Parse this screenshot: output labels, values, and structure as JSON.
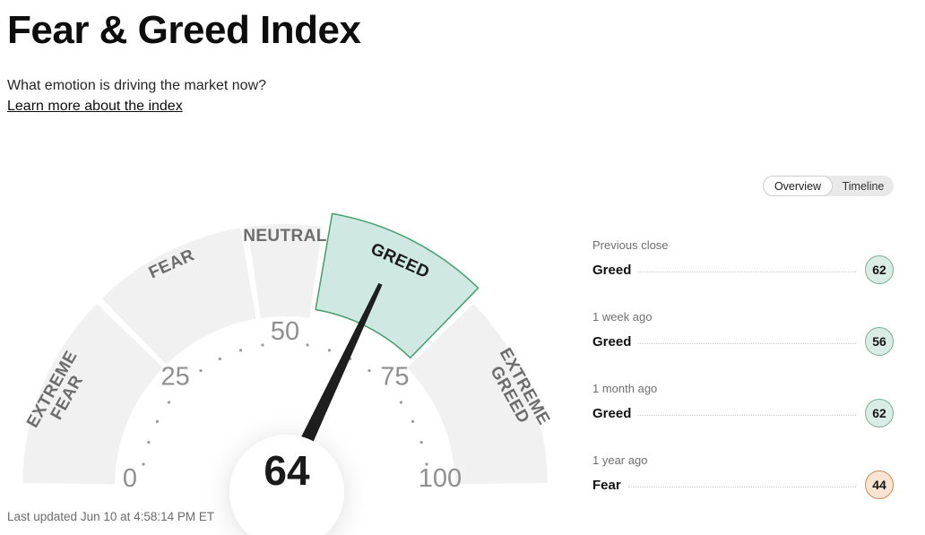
{
  "header": {
    "title": "Fear & Greed Index",
    "subtitle": "What emotion is driving the market now?",
    "link": "Learn more about the index"
  },
  "view_toggle": {
    "options": [
      {
        "label": "Overview",
        "selected": true
      },
      {
        "label": "Timeline",
        "selected": false
      }
    ]
  },
  "chart_data": {
    "type": "gauge",
    "title": "Fear & Greed Index",
    "score": 64,
    "current_rating": "Greed",
    "min": 0,
    "max": 100,
    "axis_ticks": [
      0,
      25,
      50,
      75,
      100
    ],
    "dot_step": 5,
    "segments": [
      {
        "label": "Extreme Fear",
        "display_lines": [
          "EXTREME",
          "FEAR"
        ],
        "from": 0,
        "to": 25,
        "selected": false
      },
      {
        "label": "Fear",
        "display_lines": [
          "FEAR"
        ],
        "from": 25,
        "to": 45,
        "selected": false
      },
      {
        "label": "Neutral",
        "display_lines": [
          "NEUTRAL"
        ],
        "from": 45,
        "to": 55,
        "selected": false
      },
      {
        "label": "Greed",
        "display_lines": [
          "GREED"
        ],
        "from": 55,
        "to": 75,
        "selected": true
      },
      {
        "label": "Extreme Greed",
        "display_lines": [
          "EXTREME",
          "GREED"
        ],
        "from": 75,
        "to": 100,
        "selected": false
      }
    ]
  },
  "history": [
    {
      "period": "Previous close",
      "rating": "Greed",
      "value": "62",
      "color": "teal"
    },
    {
      "period": "1 week ago",
      "rating": "Greed",
      "value": "56",
      "color": "teal"
    },
    {
      "period": "1 month ago",
      "rating": "Greed",
      "value": "62",
      "color": "teal"
    },
    {
      "period": "1 year ago",
      "rating": "Fear",
      "value": "44",
      "color": "orange"
    }
  ],
  "colors": {
    "segment_fill": "#f1f1f1",
    "selected_fill": "#cfe9e2",
    "selected_stroke": "#469c6f",
    "label_gray": "#6d6d6d",
    "label_selected": "#1c1c1c",
    "tick_number": "#8f8f8f",
    "dot": "#9a9a9a",
    "needle": "#1e1e1e",
    "score_text": "#1a1a1a",
    "teal_badge_bg": "#d9ece6",
    "teal_badge_border": "#79b492",
    "orange_badge_bg": "#f9e4d2",
    "orange_badge_border": "#cc8a57"
  },
  "footer": {
    "last_updated": "Last updated Jun 10 at 4:58:14 PM ET"
  }
}
